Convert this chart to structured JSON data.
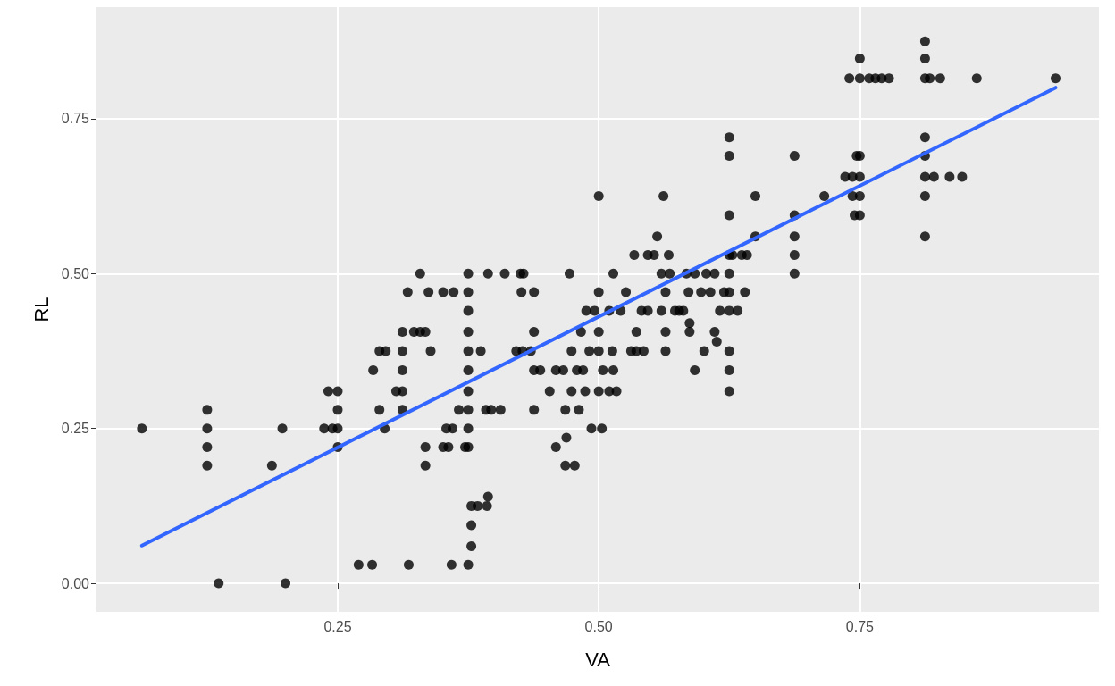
{
  "chart_data": {
    "type": "scatter",
    "xlabel": "VA",
    "ylabel": "RL",
    "xlim": [
      0.019,
      0.979
    ],
    "ylim": [
      -0.046,
      0.93
    ],
    "xticks": [
      {
        "value": 0.25,
        "label": "0.25"
      },
      {
        "value": 0.5,
        "label": "0.50"
      },
      {
        "value": 0.75,
        "label": "0.75"
      }
    ],
    "yticks": [
      {
        "value": 0,
        "label": "0.00"
      },
      {
        "value": 0.25,
        "label": "0.25"
      },
      {
        "value": 0.5,
        "label": "0.50"
      },
      {
        "value": 0.75,
        "label": "0.75"
      }
    ],
    "grid": true,
    "marker": "circle",
    "series": [
      {
        "color": "#000000",
        "x": [
          0.0625,
          0.125,
          0.125,
          0.125,
          0.125,
          0.136,
          0.187,
          0.197,
          0.2,
          0.237,
          0.245,
          0.25,
          0.25,
          0.25,
          0.25,
          0.241,
          0.27,
          0.283,
          0.284,
          0.29,
          0.296,
          0.29,
          0.295,
          0.306,
          0.312,
          0.312,
          0.312,
          0.312,
          0.312,
          0.317,
          0.318,
          0.323,
          0.329,
          0.334,
          0.329,
          0.334,
          0.334,
          0.337,
          0.339,
          0.351,
          0.361,
          0.351,
          0.356,
          0.354,
          0.36,
          0.359,
          0.366,
          0.375,
          0.375,
          0.375,
          0.375,
          0.375,
          0.375,
          0.375,
          0.375,
          0.375,
          0.375,
          0.375,
          0.372,
          0.378,
          0.378,
          0.378,
          0.384,
          0.393,
          0.387,
          0.394,
          0.394,
          0.392,
          0.397,
          0.406,
          0.41,
          0.421,
          0.427,
          0.425,
          0.428,
          0.426,
          0.435,
          0.438,
          0.438,
          0.438,
          0.438,
          0.444,
          0.453,
          0.459,
          0.459,
          0.466,
          0.469,
          0.472,
          0.468,
          0.468,
          0.477,
          0.474,
          0.474,
          0.479,
          0.481,
          0.483,
          0.485,
          0.487,
          0.488,
          0.491,
          0.493,
          0.496,
          0.5,
          0.5,
          0.5,
          0.5,
          0.5,
          0.503,
          0.504,
          0.51,
          0.514,
          0.513,
          0.514,
          0.51,
          0.517,
          0.521,
          0.526,
          0.531,
          0.536,
          0.536,
          0.534,
          0.541,
          0.543,
          0.547,
          0.547,
          0.553,
          0.556,
          0.56,
          0.56,
          0.562,
          0.564,
          0.564,
          0.564,
          0.567,
          0.568,
          0.573,
          0.577,
          0.581,
          0.584,
          0.586,
          0.587,
          0.587,
          0.592,
          0.592,
          0.598,
          0.601,
          0.603,
          0.607,
          0.611,
          0.611,
          0.613,
          0.616,
          0.62,
          0.625,
          0.625,
          0.625,
          0.625,
          0.625,
          0.625,
          0.625,
          0.625,
          0.625,
          0.625,
          0.628,
          0.633,
          0.637,
          0.64,
          0.642,
          0.65,
          0.65,
          0.6875,
          0.6875,
          0.6875,
          0.6875,
          0.6875,
          0.716,
          0.736,
          0.74,
          0.743,
          0.743,
          0.745,
          0.747,
          0.75,
          0.75,
          0.75,
          0.75,
          0.75,
          0.75,
          0.759,
          0.765,
          0.771,
          0.778,
          0.8125,
          0.8125,
          0.8125,
          0.8125,
          0.8125,
          0.8125,
          0.8125,
          0.8125,
          0.817,
          0.827,
          0.821,
          0.836,
          0.848,
          0.862,
          0.9375
        ],
        "values": [
          0.25,
          0.28,
          0.25,
          0.22,
          0.19,
          0,
          0.19,
          0.25,
          0,
          0.25,
          0.25,
          0.31,
          0.28,
          0.25,
          0.22,
          0.31,
          0.03,
          0.03,
          0.344,
          0.375,
          0.375,
          0.28,
          0.25,
          0.31,
          0.406,
          0.344,
          0.31,
          0.28,
          0.375,
          0.47,
          0.03,
          0.406,
          0.406,
          0.406,
          0.5,
          0.22,
          0.19,
          0.47,
          0.375,
          0.47,
          0.47,
          0.22,
          0.22,
          0.25,
          0.25,
          0.03,
          0.28,
          0.5,
          0.47,
          0.44,
          0.406,
          0.375,
          0.344,
          0.31,
          0.28,
          0.25,
          0.22,
          0.03,
          0.22,
          0.125,
          0.094,
          0.06,
          0.125,
          0.125,
          0.375,
          0.14,
          0.5,
          0.28,
          0.28,
          0.28,
          0.5,
          0.375,
          0.375,
          0.5,
          0.5,
          0.47,
          0.375,
          0.344,
          0.28,
          0.406,
          0.47,
          0.344,
          0.31,
          0.22,
          0.344,
          0.344,
          0.235,
          0.5,
          0.28,
          0.19,
          0.19,
          0.31,
          0.375,
          0.344,
          0.28,
          0.406,
          0.344,
          0.31,
          0.44,
          0.375,
          0.25,
          0.44,
          0.47,
          0.625,
          0.31,
          0.406,
          0.375,
          0.25,
          0.344,
          0.44,
          0.5,
          0.375,
          0.344,
          0.31,
          0.31,
          0.44,
          0.47,
          0.375,
          0.406,
          0.375,
          0.53,
          0.44,
          0.375,
          0.53,
          0.44,
          0.53,
          0.56,
          0.44,
          0.5,
          0.625,
          0.47,
          0.406,
          0.375,
          0.53,
          0.5,
          0.44,
          0.44,
          0.44,
          0.5,
          0.47,
          0.42,
          0.406,
          0.344,
          0.5,
          0.47,
          0.375,
          0.5,
          0.47,
          0.406,
          0.5,
          0.39,
          0.44,
          0.47,
          0.72,
          0.69,
          0.594,
          0.53,
          0.5,
          0.47,
          0.44,
          0.375,
          0.344,
          0.31,
          0.53,
          0.44,
          0.53,
          0.47,
          0.53,
          0.56,
          0.625,
          0.69,
          0.594,
          0.56,
          0.53,
          0.5,
          0.625,
          0.656,
          0.815,
          0.656,
          0.625,
          0.594,
          0.69,
          0.847,
          0.815,
          0.656,
          0.625,
          0.594,
          0.69,
          0.815,
          0.815,
          0.815,
          0.815,
          0.875,
          0.847,
          0.815,
          0.72,
          0.69,
          0.656,
          0.625,
          0.56,
          0.815,
          0.815,
          0.656,
          0.656,
          0.656,
          0.815,
          0.815
        ]
      },
      {
        "type": "line",
        "color": "#3366ff",
        "marker": "none",
        "x": [
          0.0625,
          0.9375
        ],
        "values": [
          0.061,
          0.8
        ]
      }
    ]
  }
}
